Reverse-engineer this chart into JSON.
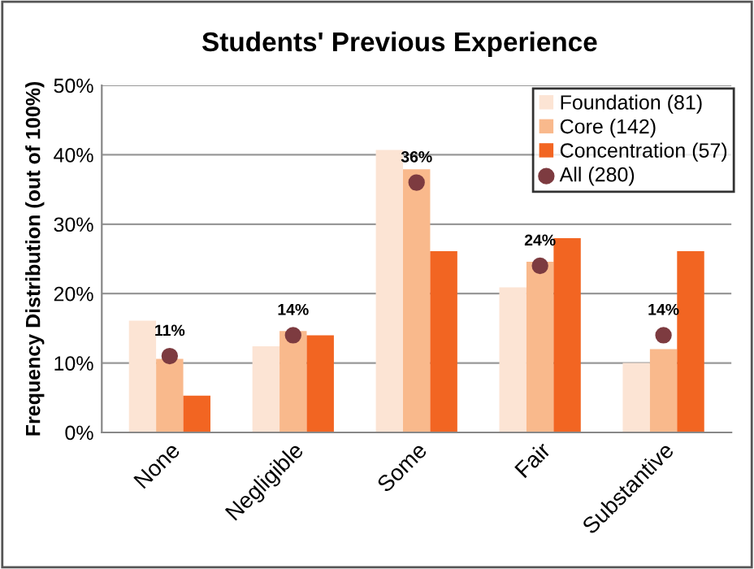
{
  "chart_data": {
    "type": "bar",
    "title": "Students' Previous Experience",
    "ylabel": "Frequency Distribution (out of 100%)",
    "categories": [
      "None",
      "Negligible",
      "Some",
      "Fair",
      "Substantive"
    ],
    "series": [
      {
        "name": "Foundation (81)",
        "color": "#fce4d4",
        "values": [
          16.1,
          12.4,
          40.7,
          20.9,
          10.0
        ]
      },
      {
        "name": "Core (142)",
        "color": "#f9b98c",
        "values": [
          10.6,
          14.6,
          37.9,
          24.6,
          12.0
        ]
      },
      {
        "name": "Concentration (57)",
        "color": "#f26522",
        "values": [
          5.3,
          14.0,
          26.1,
          28.0,
          26.1
        ]
      },
      {
        "name": "All (280)",
        "type": "scatter",
        "color": "#7d3b40",
        "marker": "circle",
        "x": [
          "None",
          "Negligible",
          "Some",
          "Fair",
          "Substantive"
        ],
        "values": [
          11,
          14,
          36,
          24,
          14
        ],
        "value_labels": [
          "11%",
          "14%",
          "36%",
          "24%",
          "14%"
        ]
      }
    ],
    "ylim": [
      0,
      50
    ],
    "yticks": [
      {
        "value": 0,
        "label": "0%"
      },
      {
        "value": 10,
        "label": "10%"
      },
      {
        "value": 20,
        "label": "20%"
      },
      {
        "value": 30,
        "label": "30%"
      },
      {
        "value": 40,
        "label": "40%"
      },
      {
        "value": 50,
        "label": "50%"
      }
    ],
    "grid": "y",
    "legend": "top right"
  }
}
